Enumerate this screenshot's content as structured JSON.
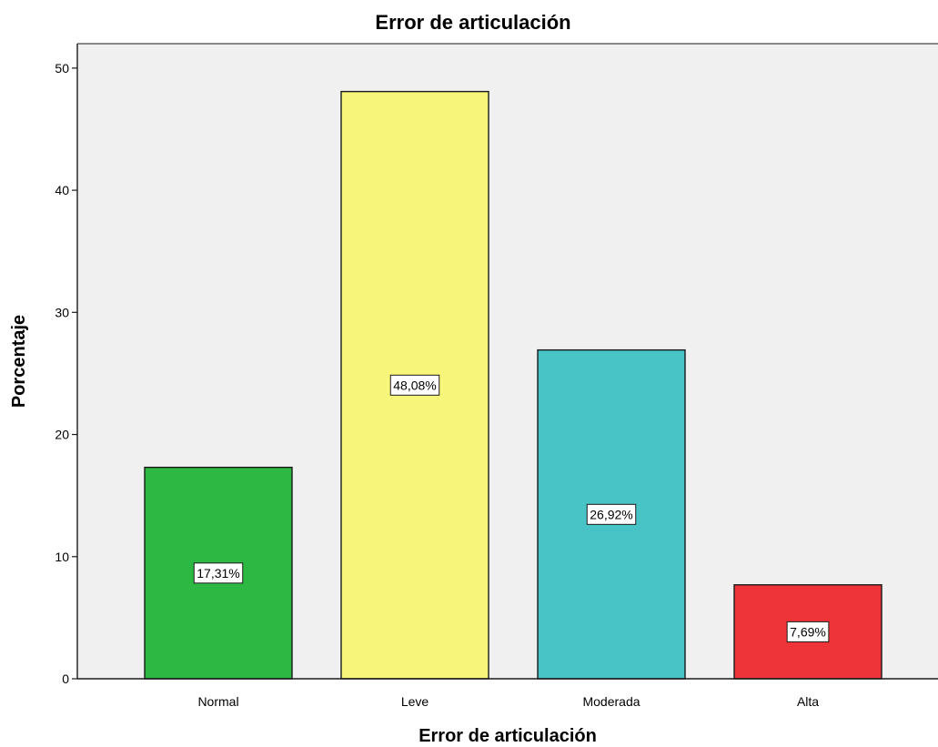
{
  "chart_data": {
    "type": "bar",
    "title": "Error de articulación",
    "xlabel": "Error de articulación",
    "ylabel": "Porcentaje",
    "categories": [
      "Normal",
      "Leve",
      "Moderada",
      "Alta"
    ],
    "values": [
      17.31,
      48.08,
      26.92,
      7.69
    ],
    "data_labels": [
      "17,31%",
      "48,08%",
      "26,92%",
      "7,69%"
    ],
    "colors": [
      "#2db743",
      "#f8f67a",
      "#48c3c6",
      "#ef3439"
    ],
    "ylim": [
      0,
      52
    ],
    "yticks": [
      0,
      10,
      20,
      30,
      40,
      50
    ],
    "background": "#f0f0f0",
    "grid": false,
    "legend": "none"
  }
}
